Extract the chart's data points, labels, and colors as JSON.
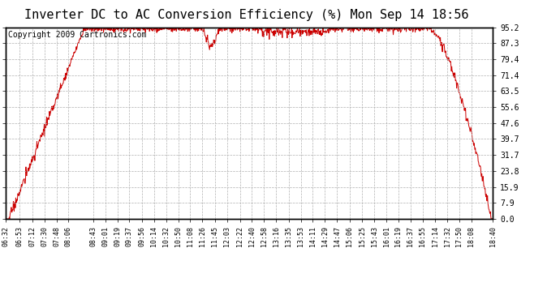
{
  "title": "Inverter DC to AC Conversion Efficiency (%) Mon Sep 14 18:56",
  "copyright_text": "Copyright 2009 Cartronics.com",
  "background_color": "#ffffff",
  "plot_bg_color": "#ffffff",
  "line_color": "#cc0000",
  "grid_color": "#b0b0b0",
  "y_ticks": [
    0.0,
    7.9,
    15.9,
    23.8,
    31.7,
    39.7,
    47.6,
    55.6,
    63.5,
    71.4,
    79.4,
    87.3,
    95.2
  ],
  "x_tick_labels": [
    "06:32",
    "06:53",
    "07:12",
    "07:30",
    "07:48",
    "08:06",
    "08:43",
    "09:01",
    "09:19",
    "09:37",
    "09:56",
    "10:14",
    "10:32",
    "10:50",
    "11:08",
    "11:26",
    "11:45",
    "12:03",
    "12:22",
    "12:40",
    "12:58",
    "13:16",
    "13:35",
    "13:53",
    "14:11",
    "14:29",
    "14:47",
    "15:06",
    "15:25",
    "15:43",
    "16:01",
    "16:19",
    "16:37",
    "16:55",
    "17:14",
    "17:32",
    "17:50",
    "18:08",
    "18:40"
  ],
  "ymin": 0.0,
  "ymax": 95.2,
  "title_fontsize": 11,
  "copyright_fontsize": 7,
  "tick_fontsize": 7,
  "xtick_fontsize": 6
}
